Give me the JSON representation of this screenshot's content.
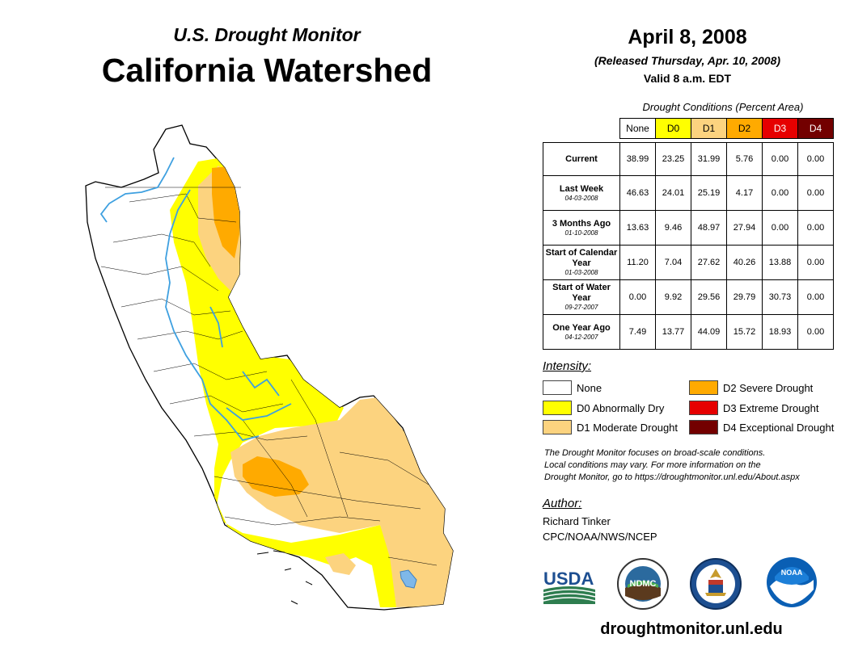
{
  "header": {
    "subtitle": "U.S. Drought Monitor",
    "title": "California Watershed",
    "date": "April 8, 2008",
    "released": "(Released Thursday, Apr. 10, 2008)",
    "valid": "Valid 8 a.m. EDT"
  },
  "table": {
    "title": "Drought Conditions (Percent Area)",
    "columns": [
      "None",
      "D0",
      "D1",
      "D2",
      "D3",
      "D4"
    ],
    "column_colors": [
      "#ffffff",
      "#ffff00",
      "#fcd37f",
      "#ffaa00",
      "#e60000",
      "#730000"
    ],
    "column_text_colors": [
      "#000000",
      "#000000",
      "#000000",
      "#000000",
      "#ffffff",
      "#ffffff"
    ],
    "rows": [
      {
        "label": "Current",
        "date": "",
        "values": [
          "38.99",
          "23.25",
          "31.99",
          "5.76",
          "0.00",
          "0.00"
        ]
      },
      {
        "label": "Last Week",
        "date": "04-03-2008",
        "values": [
          "46.63",
          "24.01",
          "25.19",
          "4.17",
          "0.00",
          "0.00"
        ]
      },
      {
        "label": "3 Months Ago",
        "date": "01-10-2008",
        "values": [
          "13.63",
          "9.46",
          "48.97",
          "27.94",
          "0.00",
          "0.00"
        ]
      },
      {
        "label": "Start of Calendar Year",
        "date": "01-03-2008",
        "values": [
          "11.20",
          "7.04",
          "27.62",
          "40.26",
          "13.88",
          "0.00"
        ]
      },
      {
        "label": "Start of Water Year",
        "date": "09-27-2007",
        "values": [
          "0.00",
          "9.92",
          "29.56",
          "29.79",
          "30.73",
          "0.00"
        ]
      },
      {
        "label": "One Year Ago",
        "date": "04-12-2007",
        "values": [
          "7.49",
          "13.77",
          "44.09",
          "15.72",
          "18.93",
          "0.00"
        ]
      }
    ]
  },
  "legend": {
    "label": "Intensity:",
    "items": [
      {
        "label": "None",
        "color": "#ffffff"
      },
      {
        "label": "D0 Abnormally Dry",
        "color": "#ffff00"
      },
      {
        "label": "D1 Moderate Drought",
        "color": "#fcd37f"
      },
      {
        "label": "D2 Severe Drought",
        "color": "#ffaa00"
      },
      {
        "label": "D3 Extreme Drought",
        "color": "#e60000"
      },
      {
        "label": "D4 Exceptional Drought",
        "color": "#730000"
      }
    ]
  },
  "note": {
    "line1": "The Drought Monitor focuses on broad-scale conditions.",
    "line2": "Local conditions may vary. For more information on the",
    "line3": "Drought Monitor, go to https://droughtmonitor.unl.edu/About.aspx"
  },
  "author": {
    "label": "Author:",
    "name": "Richard Tinker",
    "org": "CPC/NOAA/NWS/NCEP"
  },
  "logos": {
    "usda": "USDA",
    "ndmc": "NDMC",
    "noaa": "NOAA"
  },
  "map_colors": {
    "none": "#ffffff",
    "d0": "#ffff00",
    "d1": "#fcd37f",
    "d2": "#ffaa00",
    "river": "#3ea0e0",
    "border": "#000000"
  },
  "footer": {
    "url": "droughtmonitor.unl.edu"
  }
}
